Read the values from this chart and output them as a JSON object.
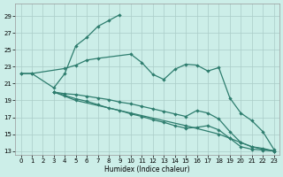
{
  "color": "#2e7d6e",
  "bg_color": "#cceee8",
  "grid_color": "#aaccc8",
  "xlabel": "Humidex (Indice chaleur)",
  "yticks": [
    13,
    15,
    17,
    19,
    21,
    23,
    25,
    27,
    29
  ],
  "xticks": [
    0,
    1,
    2,
    3,
    4,
    5,
    6,
    7,
    8,
    9,
    10,
    11,
    12,
    13,
    14,
    15,
    16,
    17,
    18,
    19,
    20,
    21,
    22,
    23
  ],
  "ylim": [
    12.5,
    30.5
  ],
  "xlim": [
    -0.5,
    23.5
  ],
  "line1_x": [
    0,
    1,
    3,
    4,
    5,
    6,
    7,
    8,
    9
  ],
  "line1_y": [
    22.2,
    22.2,
    20.5,
    22.2,
    25.5,
    26.5,
    27.8,
    28.5,
    29.2
  ],
  "line2_x": [
    0,
    1,
    4,
    5,
    6,
    7,
    10,
    11,
    12,
    13,
    14,
    15,
    16,
    17,
    18,
    19,
    20,
    21,
    22,
    23
  ],
  "line2_y": [
    22.2,
    22.2,
    22.8,
    23.2,
    23.8,
    24.0,
    24.5,
    23.5,
    22.1,
    21.5,
    22.7,
    23.3,
    23.2,
    22.5,
    22.9,
    19.3,
    17.5,
    16.6,
    15.3,
    13.2
  ],
  "line3_x": [
    3,
    4,
    5,
    6,
    7,
    8,
    9,
    10,
    11,
    12,
    13,
    14,
    15,
    16,
    17,
    18,
    19,
    20,
    21,
    22,
    23
  ],
  "line3_y": [
    20.0,
    19.8,
    19.7,
    19.5,
    19.3,
    19.1,
    18.8,
    18.6,
    18.3,
    18.0,
    17.7,
    17.4,
    17.1,
    17.8,
    17.5,
    16.8,
    15.3,
    14.0,
    13.5,
    13.2,
    13.0
  ],
  "line4_x": [
    3,
    4,
    5,
    6,
    7,
    8,
    9,
    10,
    11,
    12,
    13,
    14,
    15,
    16,
    17,
    18,
    19,
    20,
    21,
    22,
    23
  ],
  "line4_y": [
    20.0,
    19.6,
    19.2,
    18.9,
    18.5,
    18.1,
    17.8,
    17.4,
    17.1,
    16.7,
    16.4,
    16.0,
    15.7,
    15.8,
    16.0,
    15.5,
    14.5,
    13.5,
    13.2,
    13.1,
    13.0
  ],
  "line5_x": [
    3,
    5,
    10,
    15,
    18,
    19,
    20,
    21,
    22,
    23
  ],
  "line5_y": [
    20.0,
    19.0,
    17.5,
    16.0,
    15.0,
    14.5,
    14.0,
    13.5,
    13.3,
    13.0
  ]
}
